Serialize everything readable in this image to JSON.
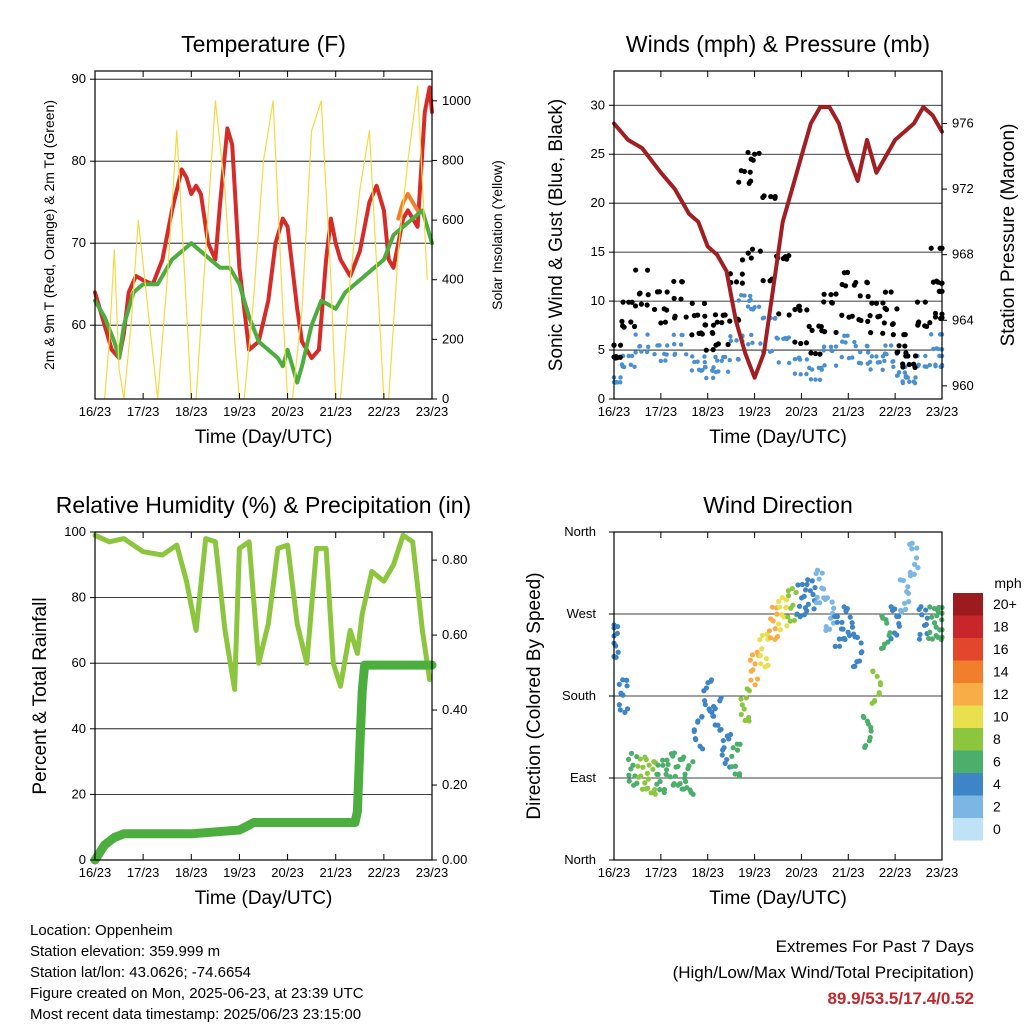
{
  "chart_data": [
    {
      "type": "line",
      "title": "Temperature (F)",
      "xlabel": "Time (Day/UTC)",
      "ylabel": "2m & 9m T (Red, Orange) & 2m Td (Green)",
      "y2label": "Solar Insolation (Yellow)",
      "x_ticks": [
        "16/23",
        "17/23",
        "18/23",
        "19/23",
        "20/23",
        "21/23",
        "22/23",
        "23/23"
      ],
      "ylim": [
        51,
        91
      ],
      "y_ticks": [
        60,
        70,
        80,
        90
      ],
      "y2lim": [
        0,
        1100
      ],
      "y2_ticks": [
        0,
        200,
        400,
        600,
        800,
        1000
      ],
      "grid_y": true,
      "series": [
        {
          "color": "#d62b27",
          "x": [
            0,
            0.1,
            0.2,
            0.35,
            0.5,
            0.6,
            0.7,
            0.85,
            1.0,
            1.2,
            1.4,
            1.6,
            1.8,
            1.9,
            2.0,
            2.1,
            2.2,
            2.35,
            2.5,
            2.6,
            2.75,
            2.85,
            3.0,
            3.2,
            3.4,
            3.6,
            3.75,
            3.9,
            4.0,
            4.1,
            4.2,
            4.3,
            4.5,
            4.65,
            4.8,
            4.9,
            5.0,
            5.1,
            5.3,
            5.5,
            5.7,
            5.85,
            6.0,
            6.1,
            6.2,
            6.3,
            6.4,
            6.5,
            6.6,
            6.7,
            6.85,
            6.95,
            7.0
          ],
          "values": [
            64,
            62,
            60,
            57,
            56,
            59,
            64,
            66,
            65.5,
            65,
            68,
            74,
            79,
            78,
            76,
            77,
            76,
            70,
            68,
            75,
            84,
            82,
            67,
            57,
            58,
            63,
            70,
            73,
            72,
            67,
            62,
            58,
            56,
            57,
            68,
            73,
            70,
            68,
            66,
            69,
            75,
            77,
            74,
            68,
            67,
            70,
            73,
            74,
            73,
            72,
            86,
            89,
            86
          ]
        },
        {
          "color": "#f07e2a",
          "x": [
            6.3,
            6.4,
            6.5,
            6.6,
            6.7
          ],
          "values": [
            73,
            75,
            76,
            75,
            74
          ]
        },
        {
          "color": "#4cae3f",
          "x": [
            0,
            0.2,
            0.4,
            0.5,
            0.6,
            0.8,
            1.0,
            1.3,
            1.6,
            1.8,
            2.0,
            2.2,
            2.4,
            2.6,
            2.8,
            3.0,
            3.2,
            3.4,
            3.6,
            3.8,
            3.9,
            4.0,
            4.2,
            4.3,
            4.5,
            4.7,
            5.0,
            5.2,
            5.4,
            5.6,
            5.8,
            6.0,
            6.2,
            6.4,
            6.6,
            6.8,
            6.9,
            7.0
          ],
          "values": [
            63,
            61,
            58,
            56,
            60,
            64,
            65,
            65,
            68,
            69,
            70,
            69,
            68,
            67,
            67,
            65,
            61,
            58,
            57,
            56,
            55,
            57,
            53,
            55,
            60,
            63,
            62,
            64,
            65,
            66,
            67,
            68,
            71,
            72,
            73,
            74,
            72,
            70
          ]
        },
        {
          "color": "#f6d943",
          "axis": "y2",
          "x": [
            0.2,
            0.3,
            0.4,
            0.5,
            0.6,
            0.75,
            0.9,
            1.1,
            1.2,
            1.3,
            1.5,
            1.7,
            1.9,
            2.0,
            2.1,
            2.3,
            2.5,
            2.7,
            2.9,
            3.0,
            3.1,
            3.3,
            3.5,
            3.7,
            3.9,
            4.0,
            4.1,
            4.3,
            4.5,
            4.7,
            4.9,
            5.0,
            5.1,
            5.3,
            5.5,
            5.7,
            5.9,
            6.0,
            6.1,
            6.3,
            6.5,
            6.7,
            6.9
          ],
          "values": [
            0,
            200,
            500,
            100,
            0,
            250,
            600,
            300,
            150,
            0,
            400,
            900,
            300,
            0,
            0,
            500,
            1000,
            700,
            200,
            0,
            0,
            350,
            800,
            1000,
            300,
            0,
            0,
            300,
            900,
            1000,
            400,
            0,
            0,
            400,
            700,
            900,
            300,
            0,
            0,
            500,
            800,
            1050,
            400
          ]
        }
      ]
    },
    {
      "type": "scatter",
      "title": "Winds (mph) & Pressure (mb)",
      "xlabel": "Time (Day/UTC)",
      "ylabel": "Sonic Wind & Gust (Blue, Black)",
      "y2label": "Station Pressure (Maroon)",
      "x_ticks": [
        "16/23",
        "17/23",
        "18/23",
        "19/23",
        "20/23",
        "21/23",
        "22/23",
        "23/23"
      ],
      "ylim": [
        0,
        33.5
      ],
      "y_ticks": [
        0,
        5,
        10,
        15,
        20,
        25,
        30
      ],
      "y2lim": [
        959.2,
        979.2
      ],
      "y2_ticks": [
        960,
        964,
        968,
        972,
        976
      ],
      "grid_y": true,
      "series": [
        {
          "color": "#4a90d0",
          "x": [
            0,
            0.3,
            0.6,
            1.0,
            1.4,
            1.8,
            2.0,
            2.3,
            2.6,
            2.8,
            3.0,
            3.3,
            3.6,
            4.0,
            4.3,
            4.6,
            5.0,
            5.3,
            5.6,
            5.9,
            6.1,
            6.3,
            6.6,
            6.9,
            7.0
          ],
          "values": [
            2,
            4,
            6,
            5,
            6,
            4,
            3,
            4,
            6,
            10,
            9,
            8,
            6,
            4,
            3,
            5,
            6,
            5,
            4,
            5,
            3,
            2,
            4,
            6,
            4
          ]
        },
        {
          "color": "#000000",
          "x": [
            0,
            0.3,
            0.6,
            1.0,
            1.4,
            1.8,
            2.0,
            2.3,
            2.6,
            2.8,
            3.0,
            3.3,
            3.6,
            4.0,
            4.3,
            4.6,
            5.0,
            5.3,
            5.6,
            5.9,
            6.1,
            6.3,
            6.6,
            6.9,
            7.0
          ],
          "values": [
            5,
            9,
            12,
            10,
            11,
            9,
            7,
            8,
            12,
            22,
            24,
            20,
            14,
            9,
            7,
            10,
            12,
            11,
            9,
            10,
            6,
            4,
            9,
            14,
            10
          ]
        },
        {
          "color": "#a11e22",
          "axis": "y2",
          "x": [
            0,
            0.3,
            0.6,
            1.0,
            1.3,
            1.6,
            1.8,
            2.0,
            2.2,
            2.4,
            2.6,
            2.8,
            3.0,
            3.2,
            3.4,
            3.6,
            3.8,
            4.0,
            4.2,
            4.4,
            4.6,
            4.8,
            5.0,
            5.2,
            5.4,
            5.6,
            5.8,
            6.0,
            6.2,
            6.4,
            6.6,
            6.8,
            7.0
          ],
          "values": [
            976,
            975,
            974.5,
            973,
            972,
            970.5,
            970,
            968.5,
            968,
            967,
            964,
            962,
            960.5,
            962,
            966,
            970,
            972,
            974,
            976,
            977,
            977,
            976,
            974,
            972.5,
            975,
            973,
            974,
            975,
            975.5,
            976,
            977,
            976.5,
            975.5
          ]
        }
      ]
    },
    {
      "type": "line",
      "title": "Relative Humidity (%) & Precipitation (in)",
      "xlabel": "Time (Day/UTC)",
      "ylabel": "Percent & Total Rainfall",
      "x_ticks": [
        "16/23",
        "17/23",
        "18/23",
        "19/23",
        "20/23",
        "21/23",
        "22/23",
        "23/23"
      ],
      "ylim": [
        0,
        100
      ],
      "y_ticks": [
        0,
        20,
        40,
        60,
        80,
        100
      ],
      "y2lim": [
        0,
        0.875
      ],
      "y2_ticks": [
        "0.00",
        "0.20",
        "0.40",
        "0.60",
        "0.80"
      ],
      "grid_y": true,
      "series": [
        {
          "color": "#8cc63f",
          "x": [
            0,
            0.3,
            0.6,
            1.0,
            1.4,
            1.7,
            1.9,
            2.1,
            2.3,
            2.5,
            2.7,
            2.9,
            3.0,
            3.2,
            3.4,
            3.6,
            3.8,
            4.0,
            4.2,
            4.4,
            4.6,
            4.8,
            4.95,
            5.1,
            5.3,
            5.45,
            5.55,
            5.75,
            6.0,
            6.2,
            6.4,
            6.6,
            6.8,
            6.95
          ],
          "values": [
            99,
            97,
            98,
            94,
            93,
            96,
            85,
            70,
            98,
            97,
            70,
            52,
            95,
            97,
            60,
            72,
            95,
            96,
            72,
            60,
            95,
            95,
            60,
            53,
            70,
            63,
            75,
            88,
            85,
            90,
            99,
            97,
            70,
            55
          ]
        },
        {
          "color": "#4cae3f",
          "axis": "y2",
          "x": [
            0,
            0.1,
            0.2,
            0.4,
            0.6,
            1.0,
            2.0,
            3.0,
            3.15,
            3.3,
            4.0,
            5.0,
            5.4,
            5.45,
            5.5,
            5.55,
            5.6,
            6.0,
            7.0
          ],
          "values": [
            0.0,
            0.02,
            0.04,
            0.06,
            0.07,
            0.07,
            0.07,
            0.08,
            0.09,
            0.1,
            0.1,
            0.1,
            0.1,
            0.13,
            0.3,
            0.45,
            0.52,
            0.52,
            0.52
          ]
        }
      ]
    },
    {
      "type": "scatter",
      "title": "Wind Direction",
      "xlabel": "Time (Day/UTC)",
      "ylabel": "Direction (Colored By Speed)",
      "x_ticks": [
        "16/23",
        "17/23",
        "18/23",
        "19/23",
        "20/23",
        "21/23",
        "22/23",
        "23/23"
      ],
      "ylim": [
        0,
        360
      ],
      "y_tick_labels": [
        "North",
        "East",
        "South",
        "West",
        "North"
      ],
      "grid_y": true,
      "legend": {
        "title": "mph",
        "labels": [
          "20+",
          "18",
          "16",
          "14",
          "12",
          "10",
          "8",
          "6",
          "4",
          "2",
          "0"
        ],
        "colors": [
          "#9b1b1f",
          "#c8262b",
          "#e2472b",
          "#f07e2a",
          "#f9ad47",
          "#e9e04d",
          "#8cc63f",
          "#4cae6b",
          "#3d85c6",
          "#7bb6e4",
          "#bfe2f6"
        ],
        "placement": "right"
      },
      "series": [
        {
          "x": [
            0,
            0.2,
            0.4,
            0.6,
            0.8,
            1.0,
            1.2,
            1.4,
            1.6,
            1.8,
            2.0,
            2.2,
            2.4,
            2.6,
            2.8,
            3.0,
            3.2,
            3.4,
            3.6,
            3.8,
            4.0,
            4.2,
            4.4,
            4.6,
            4.8,
            5.0,
            5.2,
            5.4,
            5.6,
            5.8,
            6.0,
            6.2,
            6.4,
            6.6,
            6.8,
            7.0
          ],
          "values": [
            240,
            180,
            100,
            95,
            90,
            92,
            100,
            95,
            90,
            140,
            180,
            160,
            120,
            110,
            170,
            210,
            230,
            260,
            270,
            280,
            285,
            290,
            300,
            270,
            250,
            260,
            230,
            140,
            190,
            250,
            260,
            290,
            330,
            260,
            260,
            260
          ],
          "speed": [
            4,
            4,
            6,
            7,
            8,
            6,
            5,
            5,
            6,
            4,
            4,
            4,
            4,
            5,
            8,
            12,
            10,
            12,
            10,
            8,
            4,
            3,
            2,
            2,
            4,
            4,
            4,
            6,
            8,
            5,
            4,
            1,
            1,
            4,
            6,
            6
          ]
        }
      ]
    }
  ],
  "info": {
    "location": "Location: Oppenheim",
    "elevation": "Station elevation: 359.999 m",
    "latlon": "Station lat/lon: 43.0626; -74.6654",
    "created": "Figure created on Mon, 2025-06-23, at 23:39 UTC",
    "recent": "Most recent data timestamp: 2025/06/23 23:15:00"
  },
  "extremes": {
    "line1": "Extremes For Past 7 Days",
    "line2": "(High/Low/Max Wind/Total Precipitation)",
    "values": "89.9/53.5/17.4/0.52"
  }
}
